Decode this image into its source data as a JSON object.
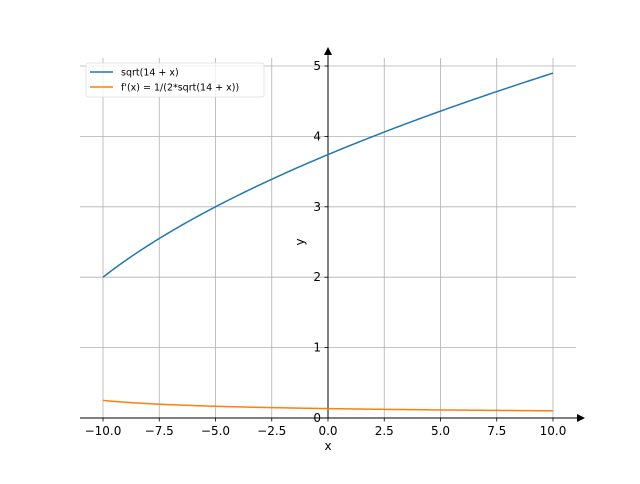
{
  "chart_data": {
    "type": "line",
    "title": "",
    "xlabel": "x",
    "ylabel": "y",
    "xlim": [
      -11,
      11.2
    ],
    "ylim": [
      0,
      5.1
    ],
    "grid": true,
    "legend_position": "top-left",
    "xticks": [
      -10,
      -7.5,
      -5,
      -2.5,
      0,
      2.5,
      5,
      7.5,
      10
    ],
    "xtick_labels": [
      "−10.0",
      "−7.5",
      "−5.0",
      "−2.5",
      "0.0",
      "2.5",
      "5.0",
      "7.5",
      "10.0"
    ],
    "yticks": [
      0,
      1,
      2,
      3,
      4,
      5
    ],
    "ytick_labels": [
      "0",
      "1",
      "2",
      "3",
      "4",
      "5"
    ],
    "series": [
      {
        "name": "sqrt(14 + x)",
        "color": "#1f77b4",
        "x_range": [
          -10,
          10
        ],
        "x": [
          -10,
          -7.5,
          -5,
          -2.5,
          0,
          2.5,
          5,
          7.5,
          10
        ],
        "y": [
          2.0,
          2.55,
          3.0,
          3.391,
          3.742,
          4.062,
          4.359,
          4.637,
          4.899
        ]
      },
      {
        "name": "f'(x) = 1/(2*sqrt(14 + x))",
        "color": "#ff7f0e",
        "x_range": [
          -10,
          10
        ],
        "x": [
          -10,
          -7.5,
          -5,
          -2.5,
          0,
          2.5,
          5,
          7.5,
          10
        ],
        "y": [
          0.25,
          0.196,
          0.167,
          0.147,
          0.134,
          0.123,
          0.115,
          0.108,
          0.102
        ]
      }
    ]
  }
}
